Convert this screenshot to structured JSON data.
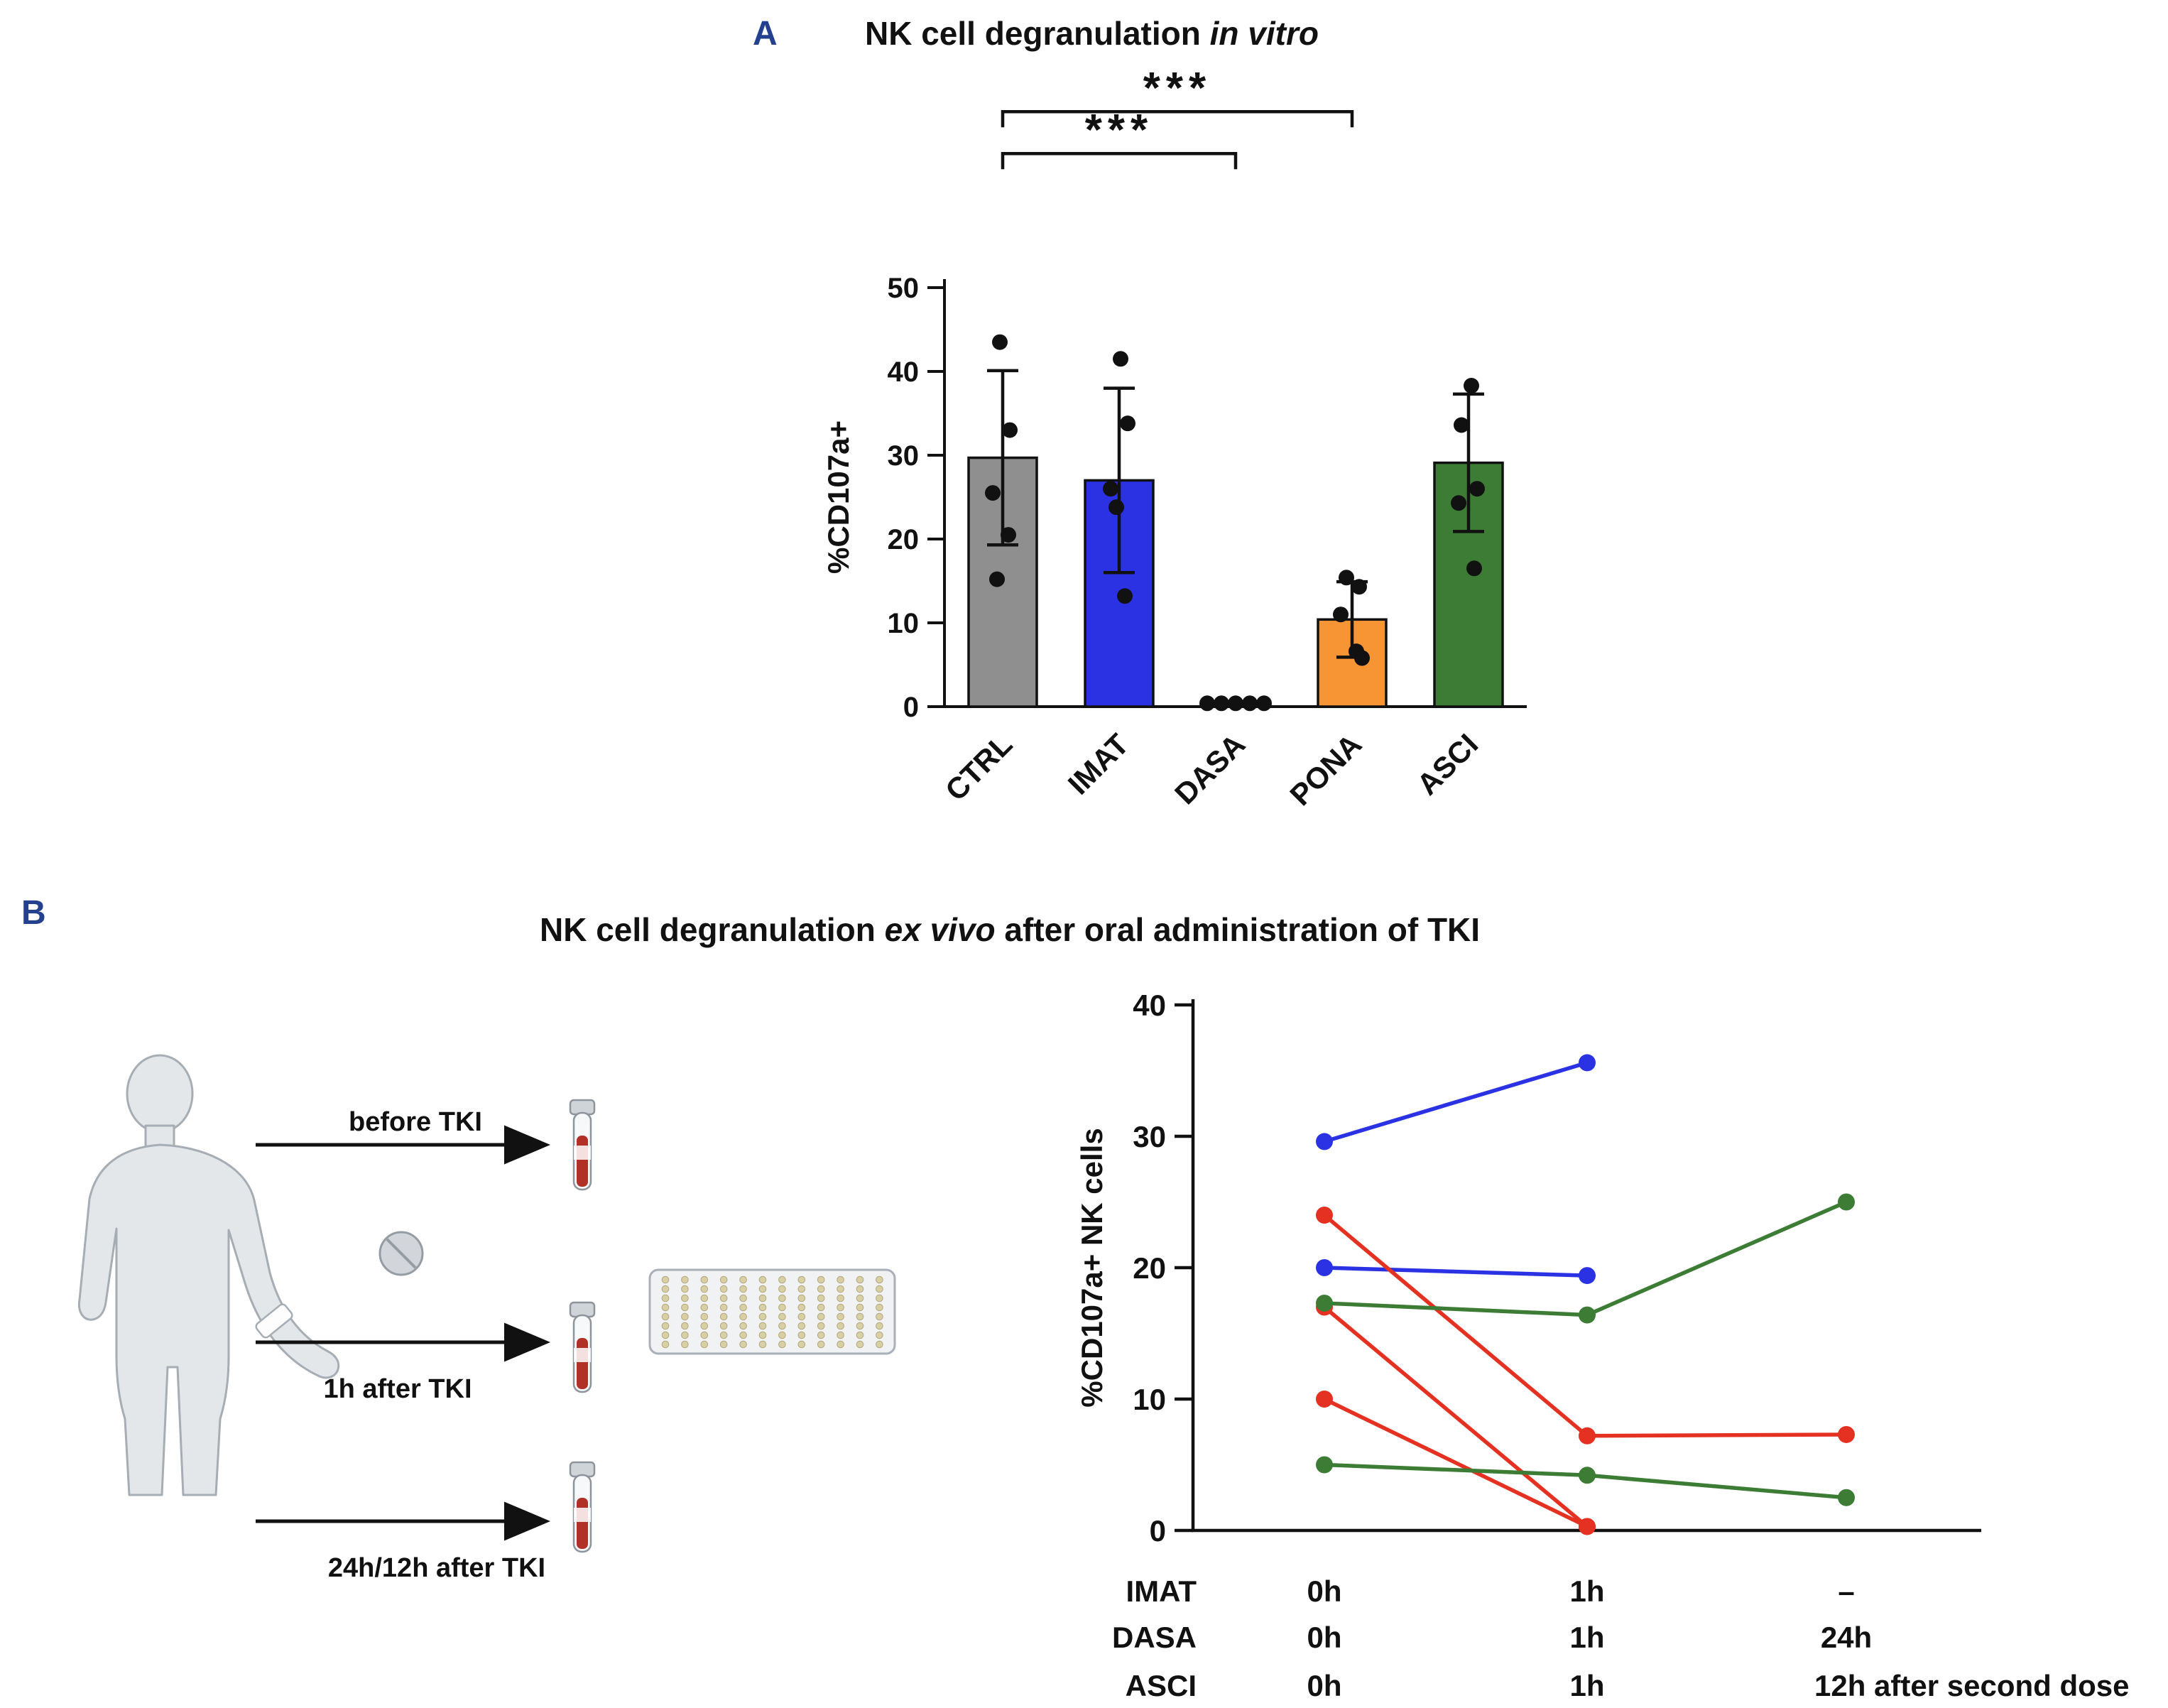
{
  "colors": {
    "panel_label": "#23418f",
    "axis": "#111111"
  },
  "panelA": {
    "label": "A",
    "title": {
      "pre": "NK cell degranulation ",
      "italic": "in vitro",
      "post": ""
    }
  },
  "panelB": {
    "label": "B",
    "title": {
      "pre": "NK cell degranulation ",
      "italic": "ex vivo",
      "post": " after oral administration of TKI"
    },
    "schematic": {
      "arrow1_label": "before TKI",
      "arrow2_label": "1h after TKI",
      "arrow3_label": "24h/12h after TKI"
    }
  },
  "chart_data": [
    {
      "type": "bar",
      "title": "NK cell degranulation in vitro",
      "ylabel": "%CD107a+",
      "ylim": [
        0,
        50
      ],
      "yticks": [
        0,
        10,
        20,
        30,
        40,
        50
      ],
      "categories": [
        "CTRL",
        "IMAT",
        "DASA",
        "PONA",
        "ASCI"
      ],
      "values": [
        29.7,
        27.0,
        0.4,
        10.4,
        29.1
      ],
      "sd": [
        10.4,
        11.0,
        0.2,
        4.5,
        8.2
      ],
      "bar_colors": [
        "#8f8f8f",
        "#2b32e3",
        "#111111",
        "#f79433",
        "#3c7c35"
      ],
      "points": [
        [
          43.5,
          33.0,
          25.5,
          20.5,
          15.2
        ],
        [
          41.5,
          33.8,
          26.0,
          23.8,
          13.2
        ],
        [
          0.4,
          0.4,
          0.4,
          0.4,
          0.4
        ],
        [
          15.4,
          14.3,
          11.0,
          6.6,
          5.8
        ],
        [
          38.3,
          33.6,
          26.0,
          24.3,
          16.5
        ]
      ],
      "significance": [
        {
          "from": 0,
          "to": 2,
          "label": "***",
          "y": 66
        },
        {
          "from": 0,
          "to": 3,
          "label": "***",
          "y": 71
        }
      ]
    },
    {
      "type": "line",
      "title": "NK cell degranulation ex vivo after oral administration of TKI",
      "ylabel": "%CD107a+ NK cells",
      "ylim": [
        0,
        40
      ],
      "yticks": [
        0,
        10,
        20,
        30,
        40
      ],
      "x_labels": [
        "0h",
        "1h",
        "24h / 12h after second dose"
      ],
      "series": [
        {
          "name": "IMAT-1",
          "group": "IMAT",
          "color": "#2b32e3",
          "values": [
            29.6,
            35.6,
            null
          ]
        },
        {
          "name": "IMAT-2",
          "group": "IMAT",
          "color": "#2b32e3",
          "values": [
            20.0,
            19.4,
            null
          ]
        },
        {
          "name": "DASA-1",
          "group": "DASA",
          "color": "#e43122",
          "values": [
            24.0,
            7.2,
            7.3
          ]
        },
        {
          "name": "DASA-2",
          "group": "DASA",
          "color": "#e43122",
          "values": [
            17.0,
            0.3,
            null
          ]
        },
        {
          "name": "DASA-3",
          "group": "DASA",
          "color": "#e43122",
          "values": [
            10.0,
            0.3,
            null
          ]
        },
        {
          "name": "ASCI-1",
          "group": "ASCI",
          "color": "#3c7c35",
          "values": [
            17.3,
            16.4,
            25.0
          ]
        },
        {
          "name": "ASCI-2",
          "group": "ASCI",
          "color": "#3c7c35",
          "values": [
            5.0,
            4.2,
            2.5
          ]
        }
      ],
      "legend_rows": [
        {
          "label": "IMAT",
          "color": "#2b32e3",
          "cols": [
            "0h",
            "1h",
            "–"
          ]
        },
        {
          "label": "DASA",
          "color": "#e43122",
          "cols": [
            "0h",
            "1h",
            "24h"
          ]
        },
        {
          "label": "ASCI",
          "color": "#3c7c35",
          "cols": [
            "0h",
            "1h",
            "12h after second dose"
          ]
        }
      ]
    }
  ]
}
